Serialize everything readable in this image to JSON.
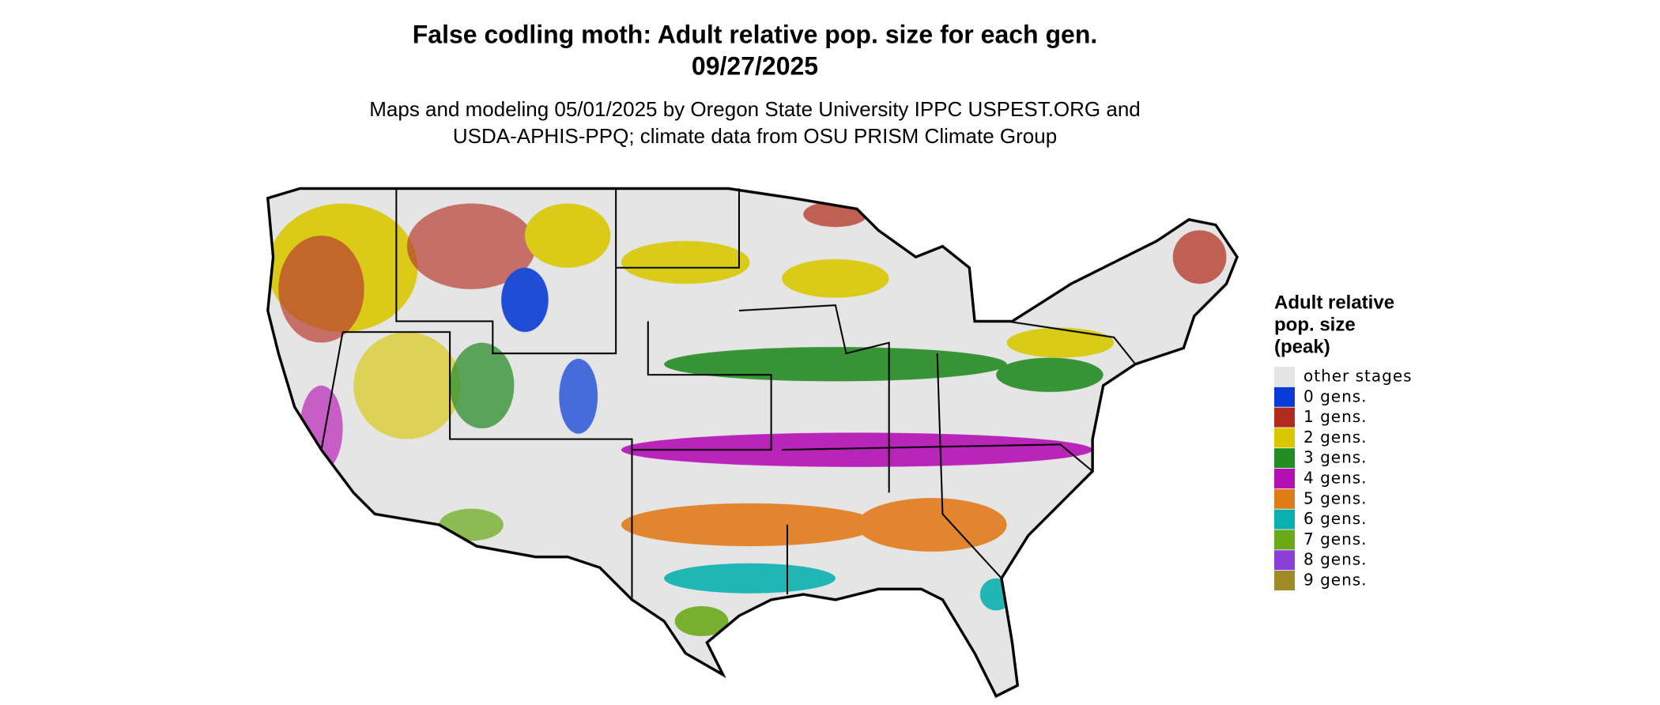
{
  "title": "False codling moth: Adult relative pop. size for each gen.",
  "date": "09/27/2025",
  "subtitle_lines": [
    "Maps and modeling 05/01/2025 by Oregon State University IPPC USPEST.ORG and",
    "USDA-APHIS-PPQ; climate data from OSU PRISM Climate Group"
  ],
  "legend": {
    "title_lines": [
      "Adult relative",
      "pop. size",
      "(peak)"
    ],
    "items": [
      {
        "label": "other stages",
        "color": "#e5e5e5"
      },
      {
        "label": "0 gens.",
        "color": "#0a3bd6"
      },
      {
        "label": "1 gens.",
        "color": "#b22a1c"
      },
      {
        "label": "2 gens.",
        "color": "#d9c800"
      },
      {
        "label": "3 gens.",
        "color": "#228b22"
      },
      {
        "label": "4 gens.",
        "color": "#b40fb4"
      },
      {
        "label": "5 gens.",
        "color": "#e07b1a"
      },
      {
        "label": "6 gens.",
        "color": "#0ab0b0"
      },
      {
        "label": "7 gens.",
        "color": "#6aaa1a"
      },
      {
        "label": "8 gens.",
        "color": "#8a3fd6"
      },
      {
        "label": "9 gens.",
        "color": "#a08a28"
      }
    ]
  }
}
